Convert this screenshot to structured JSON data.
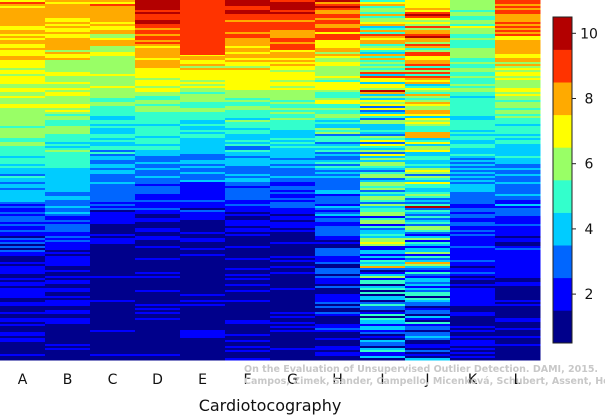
{
  "chart_data": {
    "type": "heatmap",
    "title": "",
    "xlabel": "Cardiotocography",
    "ylabel": "",
    "categories": [
      "A",
      "B",
      "C",
      "D",
      "E",
      "F",
      "G",
      "H",
      "I",
      "J",
      "K",
      "L"
    ],
    "color_scale": {
      "min": 0.5,
      "max": 10.5,
      "ticks": [
        2,
        4,
        6,
        8,
        10
      ],
      "colors": [
        "#00008b",
        "#0000ff",
        "#0066ff",
        "#00ccff",
        "#33ffcc",
        "#99ff66",
        "#ffff00",
        "#ffaa00",
        "#ff3300",
        "#b30000"
      ]
    },
    "rows_estimated_profile": {
      "description": "values decrease from top to bottom; columns I and J keep higher scattered values",
      "top_band": [
        8,
        8,
        8,
        10,
        10,
        10,
        10,
        9,
        7,
        8,
        6,
        9
      ],
      "middle_band": [
        6,
        6,
        5,
        5,
        5,
        5,
        5,
        5,
        5,
        6,
        5,
        5
      ],
      "lower_band": [
        2,
        2,
        1,
        1,
        1,
        1,
        1,
        2,
        4,
        4,
        2,
        2
      ],
      "bottom_band": [
        1,
        1,
        1,
        1,
        1,
        1,
        1,
        2,
        2,
        2,
        1,
        1
      ]
    },
    "grid": false,
    "legend": "colorbar-right"
  },
  "credit": {
    "line1": "On the Evaluation of Unsupervised Outlier Detection. DAMI, 2015.",
    "line2": "Campos, Zimek, Sander, Campello, Micenková, Schubert, Assent, Houle"
  }
}
